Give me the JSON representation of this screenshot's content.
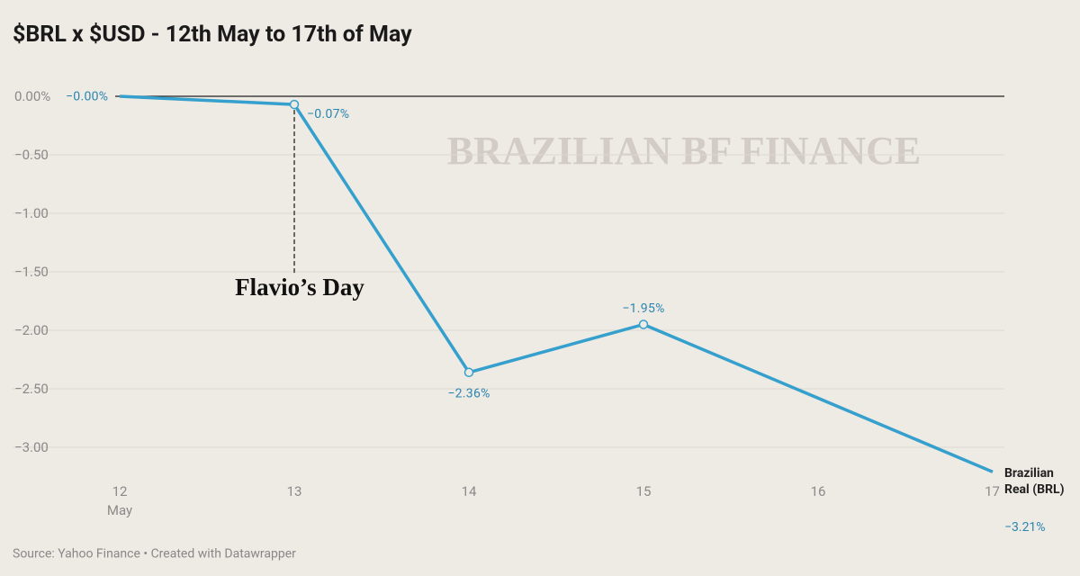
{
  "chart_data": {
    "type": "line",
    "title": "$BRL x $USD - 12th May to 17th of May",
    "source": "Source: Yahoo Finance • Created with Datawrapper",
    "watermark": "BRAZILIAN BF FINANCE",
    "annotation": "Flavio’s Day",
    "x": [
      12,
      13,
      14,
      15,
      17
    ],
    "xlim": [
      12,
      17
    ],
    "xticks": [
      12,
      13,
      14,
      15,
      16,
      17
    ],
    "x_month": "May",
    "ylim": [
      -3.25,
      0
    ],
    "yticks": [
      {
        "value": 0,
        "label": "0.00%"
      },
      {
        "value": -0.5,
        "label": "−0.50"
      },
      {
        "value": -1,
        "label": "−1.00"
      },
      {
        "value": -1.5,
        "label": "−1.50"
      },
      {
        "value": -2,
        "label": "−2.00"
      },
      {
        "value": -2.5,
        "label": "−2.50"
      },
      {
        "value": -3,
        "label": "−3.00"
      }
    ],
    "grid": true,
    "series": [
      {
        "name": "Brazilian Real (BRL)",
        "color": "#35a0cd",
        "values": [
          0,
          -0.07,
          -2.36,
          -1.95,
          -3.21
        ],
        "value_labels": [
          "−0.00%",
          "−0.07%",
          "−2.36%",
          "−1.95%",
          "−3.21%"
        ]
      }
    ]
  }
}
